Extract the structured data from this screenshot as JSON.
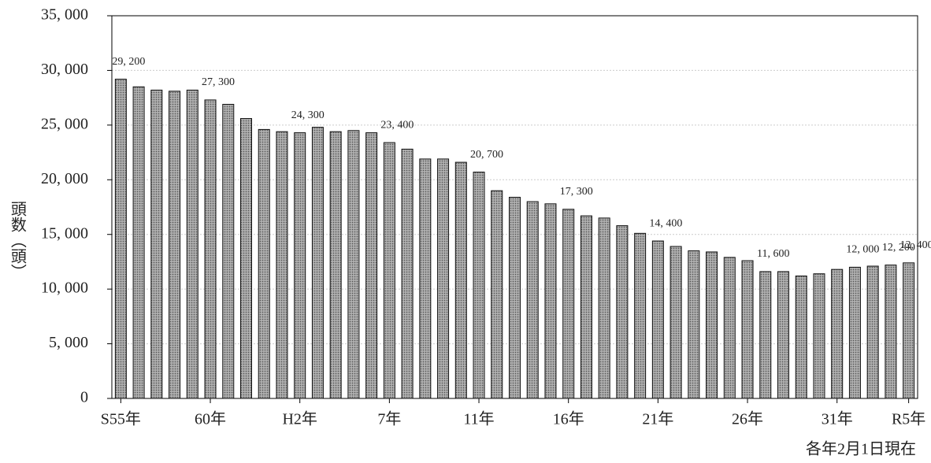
{
  "chart_data": {
    "type": "bar",
    "y_axis_label": "頭数（頭）",
    "note": "各年2月1日現在",
    "categories": [
      "S55年",
      null,
      null,
      null,
      null,
      "60年",
      null,
      null,
      null,
      null,
      "H2年",
      null,
      null,
      null,
      null,
      "7年",
      null,
      null,
      null,
      null,
      "11年",
      null,
      null,
      null,
      null,
      "16年",
      null,
      null,
      null,
      null,
      "21年",
      null,
      null,
      null,
      null,
      "26年",
      null,
      null,
      null,
      null,
      "31年",
      null,
      null,
      null,
      "R5年"
    ],
    "values": [
      29200,
      28500,
      28200,
      28100,
      28200,
      27300,
      26900,
      25600,
      24600,
      24400,
      24300,
      24800,
      24400,
      24500,
      24300,
      23400,
      22800,
      21900,
      21900,
      21600,
      20700,
      19000,
      18400,
      18000,
      17800,
      17300,
      16700,
      16500,
      15800,
      15100,
      14400,
      13900,
      13500,
      13400,
      12900,
      12600,
      11600,
      11600,
      11200,
      11400,
      11800,
      12000,
      12100,
      12200,
      12400
    ],
    "value_labels": [
      "29, 200",
      null,
      null,
      null,
      null,
      "27, 300",
      null,
      null,
      null,
      null,
      "24, 300",
      null,
      null,
      null,
      null,
      "23, 400",
      null,
      null,
      null,
      null,
      "20, 700",
      null,
      null,
      null,
      null,
      "17, 300",
      null,
      null,
      null,
      null,
      "14, 400",
      null,
      null,
      null,
      null,
      null,
      "11, 600",
      null,
      null,
      null,
      null,
      "12, 000",
      null,
      "12, 200",
      "12, 400"
    ],
    "color": "#9a9a9a",
    "ylim": [
      0,
      35000
    ],
    "yticks": [
      0,
      {
        "value": 5000,
        "label": "5, 000"
      },
      {
        "value": 10000,
        "label": "10, 000"
      },
      {
        "value": 15000,
        "label": "15, 000"
      },
      {
        "value": 20000,
        "label": "20, 000"
      },
      {
        "value": 25000,
        "label": "25, 000"
      },
      {
        "value": 30000,
        "label": "30, 000"
      },
      {
        "value": 35000,
        "label": "35, 000"
      }
    ],
    "grid": true
  }
}
